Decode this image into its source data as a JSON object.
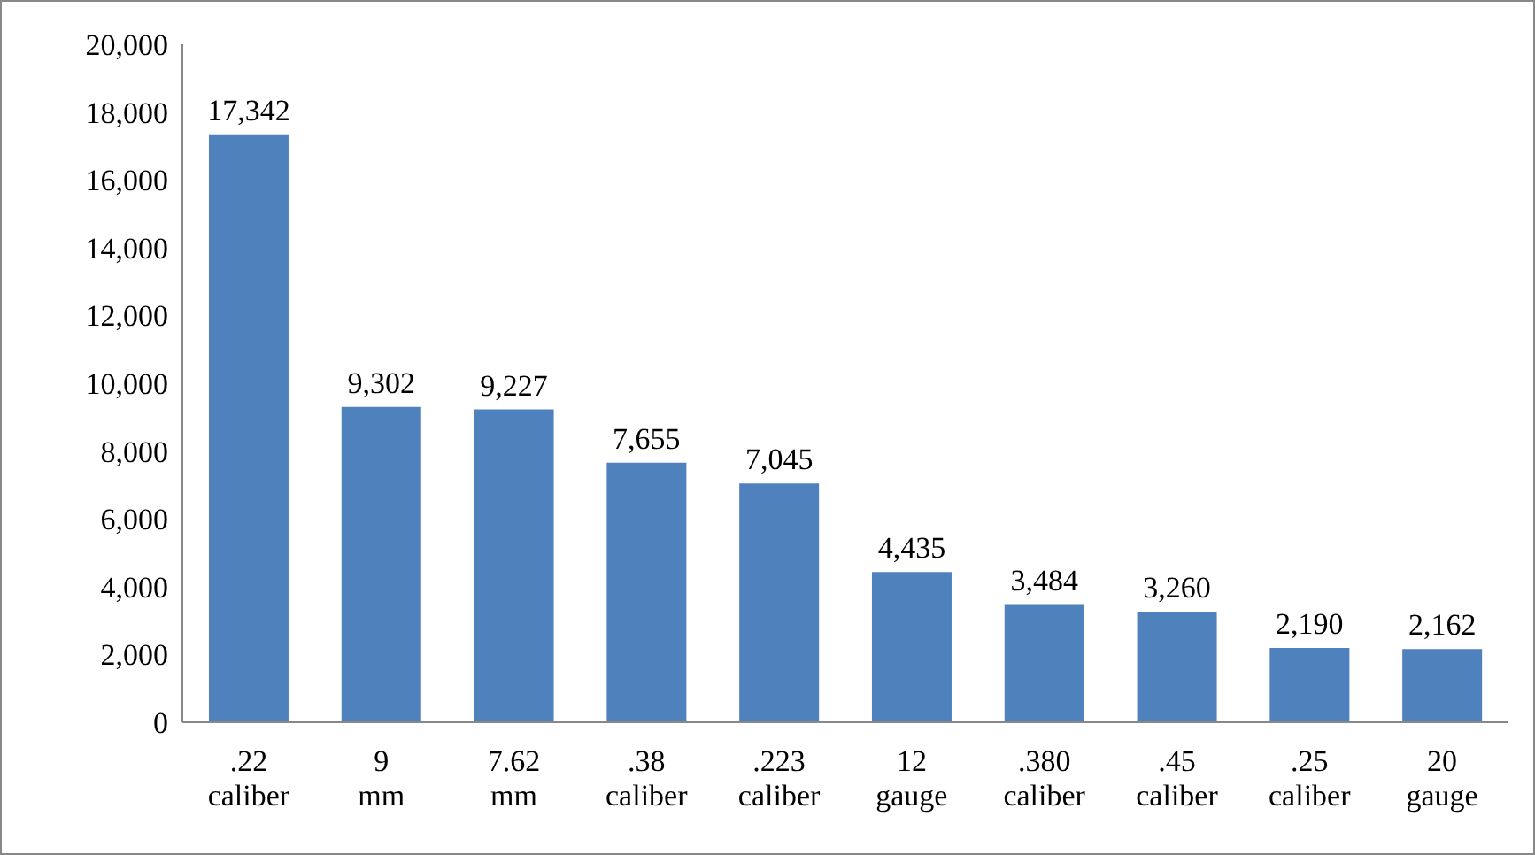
{
  "chart_data": {
    "type": "bar",
    "categories": [
      ".22\ncaliber",
      "9\nmm",
      "7.62\nmm",
      ".38\ncaliber",
      ".223\ncaliber",
      "12\ngauge",
      ".380\ncaliber",
      ".45\ncaliber",
      ".25\ncaliber",
      "20\ngauge"
    ],
    "values": [
      17342,
      9302,
      9227,
      7655,
      7045,
      4435,
      3484,
      3260,
      2190,
      2162
    ],
    "value_labels": [
      "17,342",
      "9,302",
      "9,227",
      "7,655",
      "7,045",
      "4,435",
      "3,484",
      "3,260",
      "2,190",
      "2,162"
    ],
    "color": "#4f81bd",
    "ylim": [
      0,
      20000
    ],
    "yticks": [
      0,
      {
        "value": 2000,
        "label": "2,000"
      },
      {
        "value": 4000,
        "label": "4,000"
      },
      {
        "value": 6000,
        "label": "6,000"
      },
      {
        "value": 8000,
        "label": "8,000"
      },
      {
        "value": 10000,
        "label": "10,000"
      },
      {
        "value": 12000,
        "label": "12,000"
      },
      {
        "value": 14000,
        "label": "14,000"
      },
      {
        "value": 16000,
        "label": "16,000"
      },
      {
        "value": 18000,
        "label": "18,000"
      },
      {
        "value": 20000,
        "label": "20,000"
      }
    ],
    "grid": false,
    "legend": false
  }
}
